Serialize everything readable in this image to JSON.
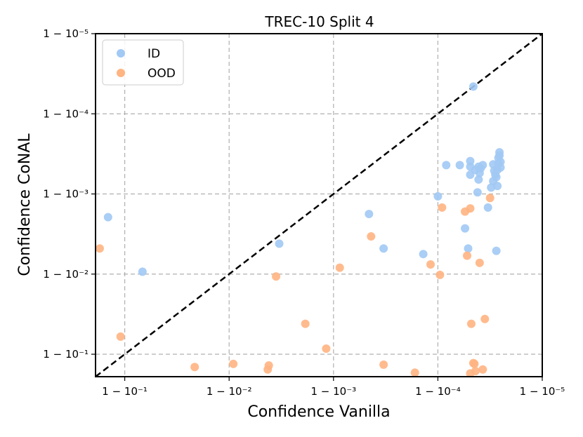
{
  "chart_data": {
    "type": "scatter",
    "title": "TREC-10 Split 4",
    "xlabel": "Confidence Vanilla",
    "ylabel": "Confidence CoNAL",
    "axis_scale": "log of (1 - confidence); values given as log10(1 - confidence)",
    "xlim": [
      -0.72,
      -5.0
    ],
    "ylim": [
      -0.72,
      -5.0
    ],
    "x_ticks": [
      {
        "value": -1,
        "label": "1 − 10⁻¹"
      },
      {
        "value": -2,
        "label": "1 − 10⁻²"
      },
      {
        "value": -3,
        "label": "1 − 10⁻³"
      },
      {
        "value": -4,
        "label": "1 − 10⁻⁴"
      },
      {
        "value": -5,
        "label": "1 − 10⁻⁵"
      }
    ],
    "y_ticks": [
      {
        "value": -1,
        "label": "1 − 10⁻¹"
      },
      {
        "value": -2,
        "label": "1 − 10⁻²"
      },
      {
        "value": -3,
        "label": "1 − 10⁻³"
      },
      {
        "value": -4,
        "label": "1 − 10⁻⁴"
      },
      {
        "value": -5,
        "label": "1 − 10⁻⁵"
      }
    ],
    "grid": true,
    "legend_position": "top-left",
    "diagonal": {
      "style": "dashed",
      "color": "#000000"
    },
    "series": [
      {
        "name": "ID",
        "color": "#a1c9f4",
        "points": [
          [
            -0.84,
            -2.71
          ],
          [
            -1.17,
            -2.03
          ],
          [
            -2.48,
            -2.38
          ],
          [
            -3.34,
            -2.75
          ],
          [
            -3.48,
            -2.32
          ],
          [
            -3.86,
            -2.25
          ],
          [
            -4.0,
            -2.97
          ],
          [
            -4.08,
            -3.36
          ],
          [
            -4.21,
            -3.36
          ],
          [
            -4.26,
            -2.57
          ],
          [
            -4.29,
            -2.32
          ],
          [
            -4.31,
            -3.24
          ],
          [
            -4.31,
            -3.34
          ],
          [
            -4.31,
            -3.41
          ],
          [
            -4.36,
            -3.3
          ],
          [
            -4.38,
            -3.02
          ],
          [
            -4.39,
            -3.18
          ],
          [
            -4.39,
            -3.34
          ],
          [
            -4.4,
            -3.26
          ],
          [
            -4.41,
            -3.32
          ],
          [
            -4.43,
            -3.36
          ],
          [
            -4.48,
            -2.83
          ],
          [
            -4.51,
            -3.08
          ],
          [
            -4.53,
            -3.16
          ],
          [
            -4.53,
            -3.37
          ],
          [
            -4.54,
            -3.29
          ],
          [
            -4.55,
            -3.24
          ],
          [
            -4.56,
            -2.29
          ],
          [
            -4.56,
            -3.21
          ],
          [
            -4.57,
            -3.1
          ],
          [
            -4.57,
            -3.3
          ],
          [
            -4.58,
            -3.45
          ],
          [
            -4.58,
            -3.38
          ],
          [
            -4.59,
            -3.48
          ],
          [
            -4.59,
            -3.52
          ],
          [
            -4.6,
            -3.4
          ],
          [
            -4.6,
            -3.33
          ],
          [
            -4.34,
            -4.34
          ]
        ]
      },
      {
        "name": "OOD",
        "color": "#ffb482",
        "points": [
          [
            -0.76,
            -2.32
          ],
          [
            -0.96,
            -1.22
          ],
          [
            -1.67,
            -0.84
          ],
          [
            -2.04,
            -0.88
          ],
          [
            -2.37,
            -0.81
          ],
          [
            -2.38,
            -0.86
          ],
          [
            -2.45,
            -1.97
          ],
          [
            -2.73,
            -1.38
          ],
          [
            -2.93,
            -1.07
          ],
          [
            -3.06,
            -2.08
          ],
          [
            -3.36,
            -2.47
          ],
          [
            -3.48,
            -0.87
          ],
          [
            -3.78,
            -0.77
          ],
          [
            -3.93,
            -2.12
          ],
          [
            -4.02,
            -1.99
          ],
          [
            -4.04,
            -2.83
          ],
          [
            -4.26,
            -2.78
          ],
          [
            -4.31,
            -2.82
          ],
          [
            -4.28,
            -2.23
          ],
          [
            -4.32,
            -1.38
          ],
          [
            -4.34,
            -0.89
          ],
          [
            -4.36,
            -0.79
          ],
          [
            -4.4,
            -2.14
          ],
          [
            -4.43,
            -0.81
          ],
          [
            -4.45,
            -1.44
          ],
          [
            -4.5,
            -2.95
          ],
          [
            -4.31,
            -0.76
          ],
          [
            -4.35,
            -0.88
          ]
        ]
      }
    ]
  }
}
